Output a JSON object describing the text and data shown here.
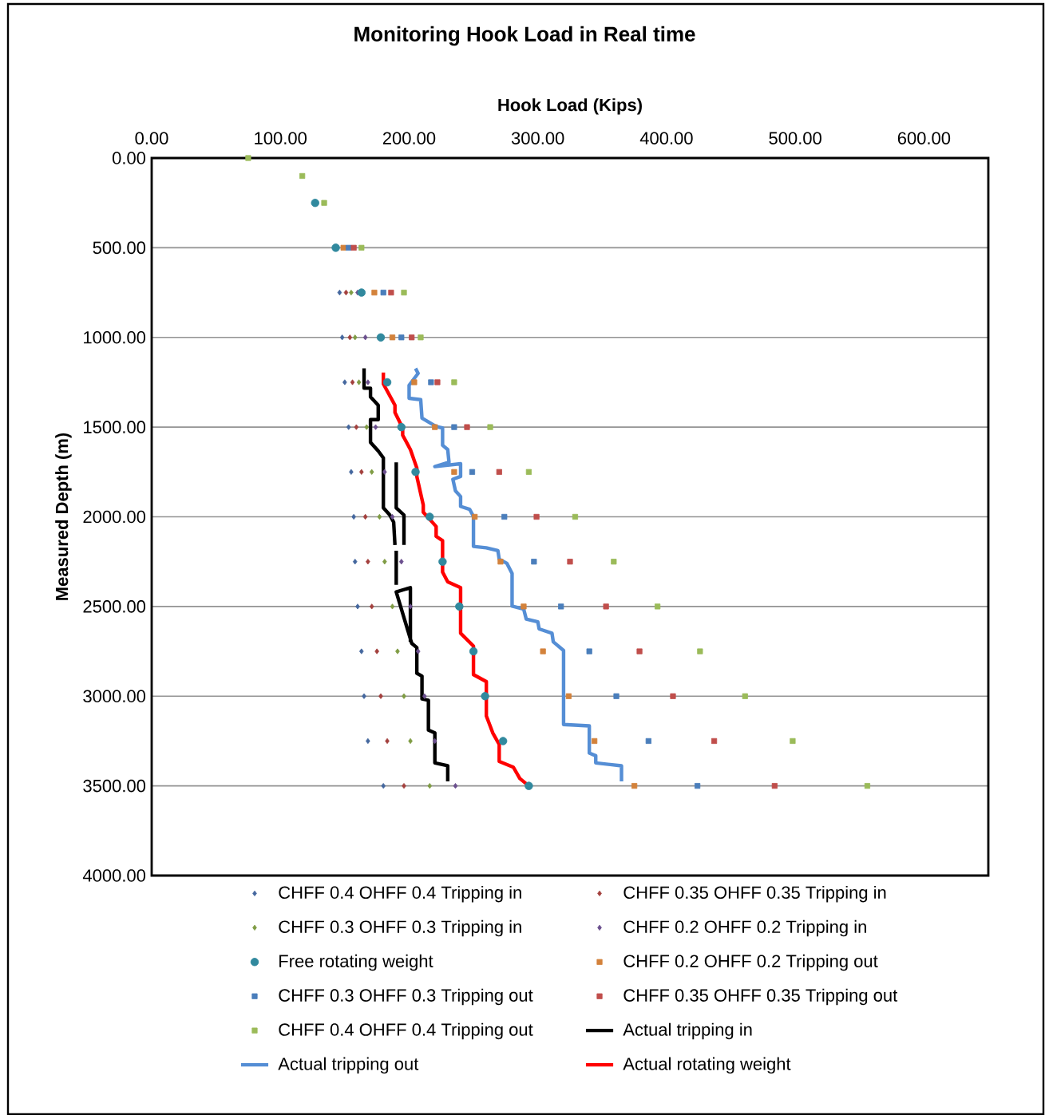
{
  "chart_data": {
    "type": "scatter",
    "title": "Monitoring Hook Load in Real time",
    "xlabel": "Hook Load (Kips)",
    "ylabel": "Measured Depth (m)",
    "xlim": [
      0,
      650
    ],
    "ylim": [
      4000,
      0
    ],
    "xticks": [
      {
        "value": 0,
        "label": "0.00"
      },
      {
        "value": 100,
        "label": "100.00"
      },
      {
        "value": 200,
        "label": "200.00"
      },
      {
        "value": 300,
        "label": "300.00"
      },
      {
        "value": 400,
        "label": "400.00"
      },
      {
        "value": 500,
        "label": "500.00"
      },
      {
        "value": 600,
        "label": "600.00"
      }
    ],
    "yticks": [
      {
        "value": 0,
        "label": "0.00"
      },
      {
        "value": 500,
        "label": "500.00"
      },
      {
        "value": 1000,
        "label": "1000.00"
      },
      {
        "value": 1500,
        "label": "1500.00"
      },
      {
        "value": 2000,
        "label": "2000.00"
      },
      {
        "value": 2500,
        "label": "2500.00"
      },
      {
        "value": 3000,
        "label": "3000.00"
      },
      {
        "value": 3500,
        "label": "3500.00"
      },
      {
        "value": 4000,
        "label": "4000.00"
      }
    ],
    "grid": "y",
    "legend": "bottom",
    "series": [
      {
        "name": "CHFF 0.4 OHFF 0.4 Tripping in",
        "marker": "diamond",
        "color": "#44679e",
        "x": [
          146,
          148,
          150,
          153,
          155,
          157,
          158,
          160,
          163,
          165,
          168,
          180
        ],
        "values": [
          750,
          1000,
          1250,
          1500,
          1750,
          2000,
          2250,
          2500,
          2750,
          3000,
          3250,
          3500
        ]
      },
      {
        "name": "CHFF 0.35 OHFF 0.35 Tripping in",
        "marker": "diamond",
        "color": "#a3403d",
        "x": [
          151,
          154,
          156,
          159,
          163,
          166,
          168,
          171,
          175,
          178,
          183,
          196
        ],
        "values": [
          750,
          1000,
          1250,
          1500,
          1750,
          2000,
          2250,
          2500,
          2750,
          3000,
          3250,
          3500
        ]
      },
      {
        "name": "CHFF 0.3 OHFF 0.3 Tripping in",
        "marker": "diamond",
        "color": "#7f9c44",
        "x": [
          155,
          158,
          161,
          167,
          171,
          177,
          181,
          187,
          191,
          196,
          201,
          216
        ],
        "values": [
          750,
          1000,
          1250,
          1500,
          1750,
          2000,
          2250,
          2500,
          2750,
          3000,
          3250,
          3500
        ]
      },
      {
        "name": "CHFF 0.2 OHFF 0.2 Tripping in",
        "marker": "diamond",
        "color": "#6b4f8e",
        "x": [
          160,
          166,
          168,
          174,
          181,
          187,
          194,
          201,
          207,
          212,
          220,
          236
        ],
        "values": [
          750,
          1000,
          1250,
          1500,
          1750,
          2000,
          2250,
          2500,
          2750,
          3000,
          3250,
          3500
        ]
      },
      {
        "name": "Free rotating weight",
        "marker": "circle",
        "color": "#31899e",
        "x": [
          127,
          143,
          163,
          178,
          183,
          194,
          205,
          216,
          226,
          239,
          250,
          259,
          273,
          293
        ],
        "values": [
          250,
          500,
          750,
          1000,
          1250,
          1500,
          1750,
          2000,
          2250,
          2500,
          2750,
          3000,
          3250,
          3500
        ]
      },
      {
        "name": "CHFF 0.2 OHFF 0.2 Tripping out",
        "marker": "square",
        "color": "#d3823b",
        "x": [
          149,
          173,
          187,
          204,
          220,
          235,
          251,
          271,
          289,
          304,
          324,
          344,
          375
        ],
        "values": [
          500,
          750,
          1000,
          1250,
          1500,
          1750,
          2000,
          2250,
          2500,
          2750,
          3000,
          3250,
          3500
        ]
      },
      {
        "name": "CHFF 0.3 OHFF 0.3 Tripping out",
        "marker": "square",
        "color": "#4a7ebb",
        "x": [
          153,
          180,
          194,
          217,
          235,
          249,
          274,
          297,
          318,
          340,
          361,
          386,
          424
        ],
        "values": [
          500,
          750,
          1000,
          1250,
          1500,
          1750,
          2000,
          2250,
          2500,
          2750,
          3000,
          3250,
          3500
        ]
      },
      {
        "name": "CHFF 0.35 OHFF 0.35 Tripping out",
        "marker": "square",
        "color": "#c04e4b",
        "x": [
          157,
          186,
          202,
          222,
          245,
          270,
          299,
          325,
          353,
          379,
          405,
          437,
          484
        ],
        "values": [
          500,
          750,
          1000,
          1250,
          1500,
          1750,
          2000,
          2250,
          2500,
          2750,
          3000,
          3250,
          3500
        ]
      },
      {
        "name": "CHFF 0.4 OHFF 0.4 Tripping out",
        "marker": "square",
        "color": "#9bbb59",
        "x": [
          75,
          117,
          134,
          163,
          196,
          209,
          235,
          263,
          293,
          329,
          359,
          393,
          426,
          461,
          498,
          556
        ],
        "values": [
          0,
          100,
          250,
          500,
          750,
          1000,
          1250,
          1500,
          1750,
          2000,
          2250,
          2500,
          2750,
          3000,
          3250,
          3500
        ]
      },
      {
        "name": "Actual tripping in",
        "type": "line",
        "marker": "none",
        "color": "#000000",
        "x": [
          165,
          165,
          170,
          170,
          176,
          176,
          170,
          170,
          176,
          180,
          180,
          185,
          188,
          189,
          null,
          190,
          190,
          196,
          196,
          null,
          190,
          190,
          null,
          201,
          201,
          190,
          202,
          206,
          206,
          210,
          210,
          215,
          215,
          220,
          220,
          230,
          230
        ],
        "values": [
          1172,
          1283,
          1283,
          1331,
          1378,
          1458,
          1458,
          1585,
          1633,
          1672,
          1950,
          1990,
          2030,
          2157,
          null,
          1696,
          1950,
          1990,
          2157,
          null,
          2189,
          2379,
          null,
          2697,
          2395,
          2419,
          2705,
          2729,
          2872,
          2888,
          3015,
          3023,
          3189,
          3205,
          3372,
          3388,
          3475
        ]
      },
      {
        "name": "Actual tripping out",
        "type": "line",
        "marker": "none",
        "color": "#558ed5",
        "x": [
          205,
          207,
          200,
          200,
          209,
          210,
          221,
          226,
          226,
          230,
          231,
          220,
          240,
          240,
          234,
          236,
          240,
          240,
          247,
          250,
          250,
          260,
          269,
          270,
          276,
          280,
          280,
          289,
          291,
          300,
          301,
          311,
          312,
          320,
          320,
          340,
          340,
          345,
          345,
          365,
          365
        ],
        "values": [
          1173,
          1200,
          1267,
          1339,
          1347,
          1450,
          1497,
          1505,
          1601,
          1625,
          1696,
          1720,
          1704,
          1775,
          1791,
          1855,
          1887,
          1942,
          1958,
          1998,
          2165,
          2173,
          2189,
          2236,
          2260,
          2316,
          2498,
          2514,
          2570,
          2586,
          2625,
          2649,
          2697,
          2745,
          3158,
          3166,
          3317,
          3332,
          3372,
          3388,
          3475
        ]
      },
      {
        "name": "Actual rotating weight",
        "type": "line",
        "marker": "none",
        "color": "#ff0000",
        "x": [
          180,
          180,
          189,
          189,
          195,
          195,
          201,
          206,
          206,
          211,
          211,
          221,
          221,
          226,
          226,
          230,
          240,
          240,
          250,
          250,
          260,
          260,
          265,
          270,
          270,
          281,
          286,
          293
        ],
        "values": [
          1196,
          1259,
          1378,
          1418,
          1505,
          1545,
          1625,
          1728,
          1775,
          1934,
          1974,
          2054,
          2109,
          2133,
          2308,
          2363,
          2395,
          2649,
          2721,
          2880,
          2919,
          3110,
          3205,
          3269,
          3364,
          3396,
          3459,
          3500
        ]
      }
    ]
  }
}
